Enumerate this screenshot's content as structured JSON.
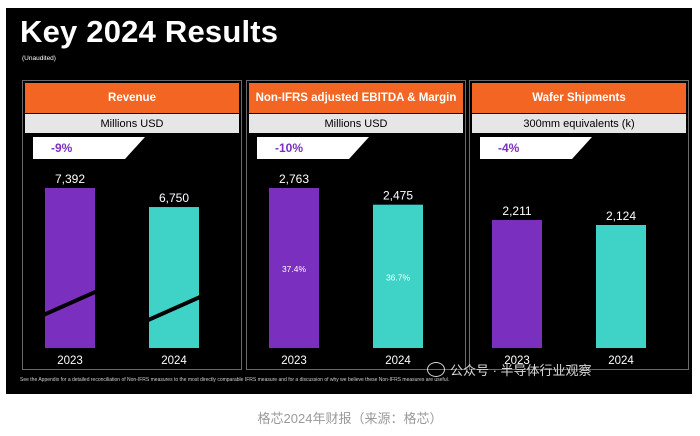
{
  "slide": {
    "title": "Key 2024 Results",
    "subtitle": "(Unaudited)",
    "footnote": "See the Appendix for a detailed reconciliation of Non-IFRS measures to the most directly comparable IFRS measure and for a discussion of why we believe these Non-IFRS measures are useful.",
    "watermark": "公众号 · 半导体行业观察"
  },
  "caption": "格芯2024年财报（来源：格芯）",
  "colors": {
    "header": "#f26522",
    "bar_2023": "#7b2fbe",
    "bar_2024": "#3fd3c8",
    "change": "#7a2fbf"
  },
  "panels": [
    {
      "title": "Revenue",
      "unit": "Millions USD",
      "change": "-9%"
    },
    {
      "title": "Non-IFRS adjusted EBITDA & Margin",
      "unit": "Millions USD",
      "change": "-10%"
    },
    {
      "title": "Wafer Shipments",
      "unit": "300mm equivalents (k)",
      "change": "-4%"
    }
  ],
  "chart_data": [
    {
      "type": "bar",
      "title": "Revenue",
      "unit": "Millions USD",
      "categories": [
        "2023",
        "2024"
      ],
      "values": [
        7392,
        6750
      ],
      "labels": [
        "7,392",
        "6,750"
      ],
      "broken_axis": true
    },
    {
      "type": "bar",
      "title": "Non-IFRS adjusted EBITDA & Margin",
      "unit": "Millions USD",
      "categories": [
        "2023",
        "2024"
      ],
      "values": [
        2763,
        2475
      ],
      "labels": [
        "2,763",
        "2,475"
      ],
      "margin_labels": [
        "37.4%",
        "36.7%"
      ]
    },
    {
      "type": "bar",
      "title": "Wafer Shipments",
      "unit": "300mm equivalents (k)",
      "categories": [
        "2023",
        "2024"
      ],
      "values": [
        2211,
        2124
      ],
      "labels": [
        "2,211",
        "2,124"
      ]
    }
  ]
}
